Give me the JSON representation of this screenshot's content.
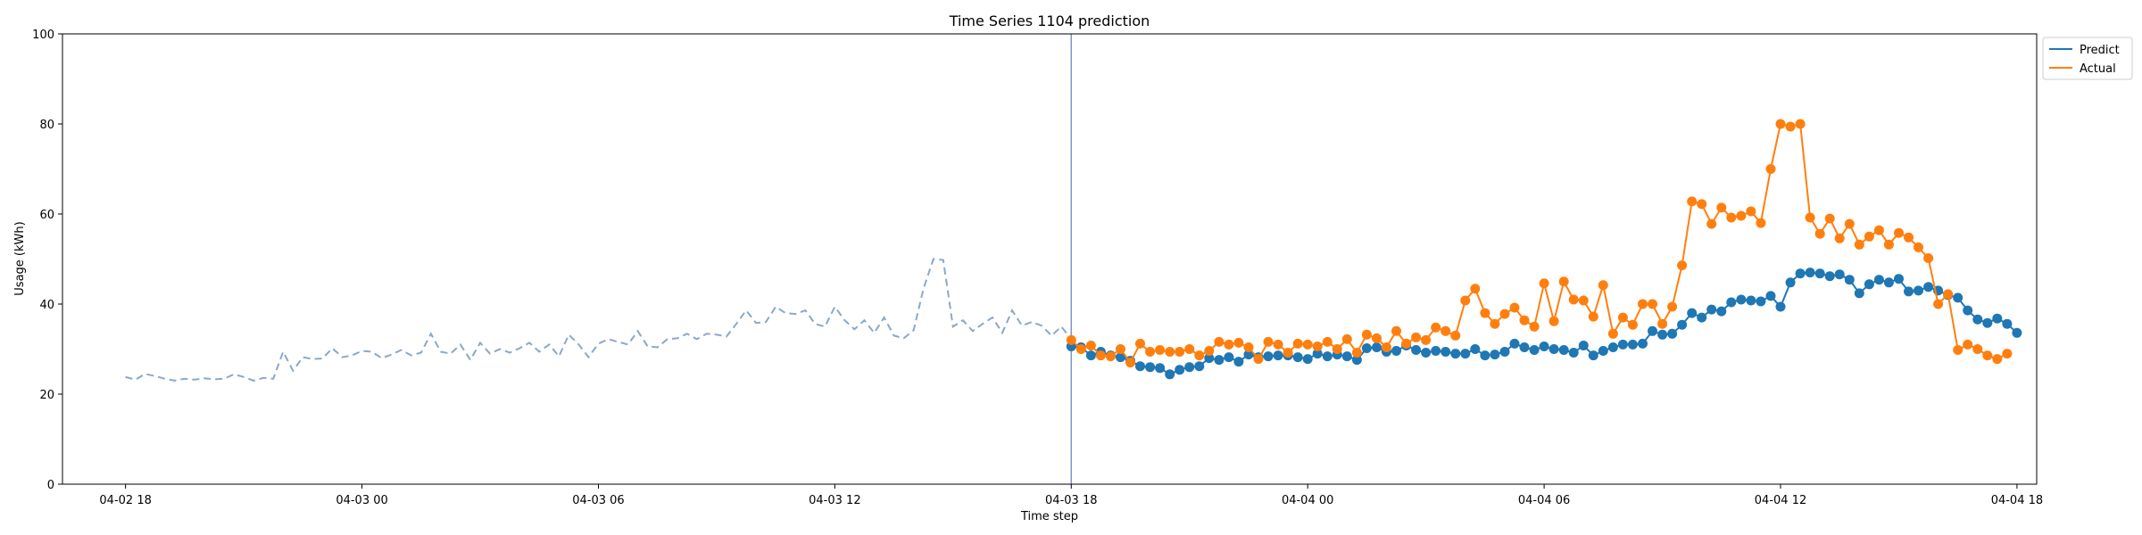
{
  "chart_data": {
    "type": "line",
    "title": "Time Series 1104 prediction",
    "xlabel": "Time step",
    "ylabel": "Usage (kWh)",
    "ylim": [
      0,
      100
    ],
    "yticks": [
      0,
      20,
      40,
      60,
      80,
      100
    ],
    "xlim_hours": [
      -1.6,
      48.5
    ],
    "xticks": [
      {
        "hour": 0,
        "label": "04-02 18"
      },
      {
        "hour": 6,
        "label": "04-03 00"
      },
      {
        "hour": 12,
        "label": "04-03 06"
      },
      {
        "hour": 18,
        "label": "04-03 12"
      },
      {
        "hour": 24,
        "label": "04-03 18"
      },
      {
        "hour": 30,
        "label": "04-04 00"
      },
      {
        "hour": 36,
        "label": "04-04 06"
      },
      {
        "hour": 42,
        "label": "04-04 12"
      },
      {
        "hour": 48,
        "label": "04-04 18"
      }
    ],
    "grid": false,
    "legend_position": "outside-top-right",
    "forecast_start_hour": 24,
    "step_hours": 0.25,
    "history": {
      "start_hour": 0,
      "color": "#8ba8c8",
      "values": [
        23.8,
        23.2,
        24.5,
        24.0,
        23.4,
        23.0,
        23.4,
        23.2,
        23.5,
        23.3,
        23.4,
        24.4,
        23.8,
        23.0,
        23.6,
        23.4,
        29.4,
        25.2,
        28.2,
        27.8,
        27.9,
        30.2,
        28.2,
        28.6,
        29.6,
        29.4,
        28.0,
        28.8,
        29.8,
        28.6,
        29.2,
        33.4,
        29.4,
        29.0,
        31.0,
        27.6,
        31.4,
        29.0,
        30.0,
        29.2,
        30.2,
        31.4,
        29.4,
        31.0,
        28.4,
        33.2,
        31.0,
        28.2,
        31.2,
        32.2,
        31.6,
        31.0,
        34.0,
        30.6,
        30.4,
        32.2,
        32.4,
        33.4,
        32.2,
        33.4,
        33.2,
        32.8,
        35.6,
        38.6,
        35.8,
        36.0,
        39.4,
        38.0,
        37.8,
        38.6,
        35.6,
        35.0,
        39.4,
        36.4,
        34.4,
        36.4,
        33.6,
        37.0,
        33.0,
        32.4,
        34.2,
        43.4,
        50.0,
        49.8,
        35.0,
        36.4,
        34.0,
        35.6,
        37.0,
        33.6,
        38.6,
        35.2,
        36.0,
        35.2,
        33.0,
        35.0,
        32.2,
        31.0
      ]
    },
    "series": [
      {
        "name": "Predict",
        "color": "#1f77b4",
        "start_hour": 24,
        "values": [
          30.6,
          30.4,
          28.6,
          29.4,
          28.6,
          28.2,
          27.4,
          26.2,
          26.0,
          25.8,
          24.4,
          25.4,
          26.0,
          26.2,
          28.0,
          27.6,
          28.2,
          27.2,
          28.8,
          28.2,
          28.4,
          28.6,
          28.6,
          28.2,
          27.8,
          29.0,
          28.4,
          28.8,
          28.4,
          27.6,
          30.2,
          30.4,
          29.4,
          29.6,
          30.8,
          29.8,
          29.2,
          29.6,
          29.4,
          29.0,
          29.0,
          30.0,
          28.6,
          28.8,
          29.4,
          31.2,
          30.4,
          29.8,
          30.6,
          30.0,
          29.8,
          29.2,
          30.8,
          28.6,
          29.6,
          30.4,
          31.0,
          31.0,
          31.2,
          34.0,
          33.2,
          33.4,
          35.4,
          38.0,
          37.0,
          38.8,
          38.4,
          40.4,
          41.0,
          40.8,
          40.6,
          41.8,
          39.4,
          44.8,
          46.8,
          47.0,
          46.8,
          46.2,
          46.6,
          45.4,
          42.4,
          44.4,
          45.4,
          44.8,
          45.6,
          42.8,
          43.0,
          43.8,
          43.0,
          42.0,
          41.4,
          38.6,
          36.6,
          35.8,
          36.8,
          35.6,
          33.6
        ]
      },
      {
        "name": "Actual",
        "color": "#ff7f0e",
        "start_hour": 24,
        "values": [
          32.0,
          30.0,
          30.8,
          28.6,
          28.4,
          30.0,
          27.0,
          31.2,
          29.4,
          29.8,
          29.4,
          29.4,
          30.0,
          28.6,
          29.6,
          31.6,
          31.0,
          31.4,
          30.4,
          27.8,
          31.6,
          31.0,
          29.2,
          31.2,
          31.0,
          30.6,
          31.6,
          30.0,
          32.2,
          29.2,
          33.2,
          32.4,
          30.4,
          34.0,
          31.2,
          32.6,
          32.0,
          34.8,
          34.0,
          33.0,
          40.8,
          43.4,
          38.0,
          35.6,
          37.8,
          39.2,
          36.4,
          35.0,
          44.6,
          36.2,
          45.0,
          41.0,
          40.8,
          37.2,
          44.2,
          33.4,
          37.0,
          35.4,
          40.0,
          40.0,
          35.6,
          39.4,
          48.6,
          62.8,
          62.2,
          57.8,
          61.4,
          59.2,
          59.6,
          60.6,
          58.0,
          70.0,
          80.0,
          79.4,
          80.0,
          59.2,
          55.6,
          59.0,
          54.6,
          57.8,
          53.2,
          55.0,
          56.4,
          53.2,
          55.8,
          54.8,
          52.6,
          50.2,
          40.0,
          42.2,
          29.8,
          31.0,
          30.0,
          28.6,
          27.8,
          29.0
        ]
      }
    ]
  }
}
